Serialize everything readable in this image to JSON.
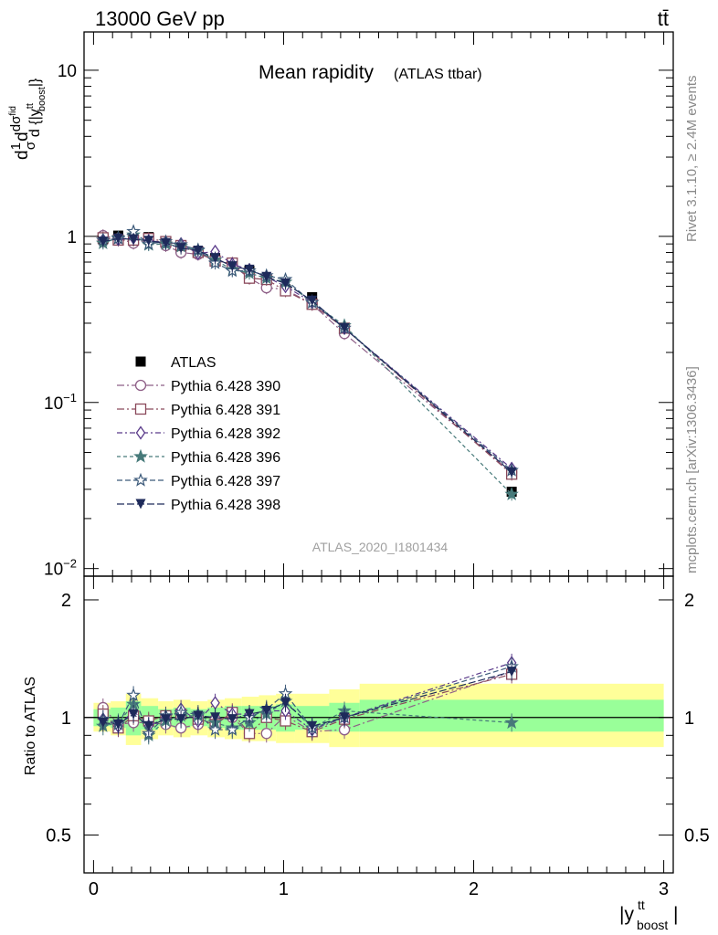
{
  "header": {
    "energy_label": "13000 GeV pp",
    "process_label": "tt̄"
  },
  "side_texts": {
    "rivet": "Rivet 3.1.10, ≥ 2.4M events",
    "mcplots": "mcplots.cern.ch [arXiv:1306.3436]"
  },
  "chart_data": [
    {
      "type": "scatter",
      "panel": "main",
      "title": "Mean rapidity",
      "subtitle": "(ATLAS ttbar)",
      "analysis_label": "ATLAS_2020_I1801434",
      "ylabel": "d 1/σ dσ^fid / d{|y_boost^tt|}",
      "xlabel": "|y_boost^tt|",
      "xlim": [
        -0.05,
        3.05
      ],
      "ylim": [
        0.009,
        17
      ],
      "yscale": "log",
      "y_ticks": [
        {
          "value": 10,
          "label": "10"
        },
        {
          "value": 1,
          "label": "1"
        },
        {
          "value": 0.1,
          "label": "10^-1"
        },
        {
          "value": 0.01,
          "label": "10^-2"
        }
      ],
      "x_ticks": [
        {
          "value": 0,
          "label": "0"
        },
        {
          "value": 1,
          "label": "1"
        },
        {
          "value": 2,
          "label": "2"
        },
        {
          "value": 3,
          "label": "3"
        }
      ],
      "legend_position": "left-middle",
      "x": [
        0.05,
        0.13,
        0.21,
        0.29,
        0.38,
        0.46,
        0.55,
        0.64,
        0.73,
        0.82,
        0.91,
        1.01,
        1.15,
        1.32,
        2.2
      ],
      "series": [
        {
          "name": "ATLAS",
          "marker": "square",
          "color": "#000000",
          "values": [
            0.96,
            1.01,
            0.94,
            0.99,
            0.92,
            0.86,
            0.81,
            0.74,
            0.67,
            0.62,
            0.55,
            0.48,
            0.43,
            0.28,
            0.029
          ]
        },
        {
          "name": "Pythia 6.428 390",
          "marker": "circle",
          "color": "#8e5f87",
          "dash": "8,3,2,3",
          "values": [
            1.01,
            0.97,
            0.91,
            0.96,
            0.88,
            0.8,
            0.78,
            0.73,
            0.67,
            0.56,
            0.49,
            0.48,
            0.39,
            0.26,
            0.038
          ]
        },
        {
          "name": "Pythia 6.428 391",
          "marker": "square-open",
          "color": "#8b4a5c",
          "dash": "8,3,2,3",
          "values": [
            0.98,
            0.95,
            0.95,
            0.97,
            0.93,
            0.88,
            0.8,
            0.71,
            0.69,
            0.56,
            0.55,
            0.47,
            0.39,
            0.28,
            0.037
          ]
        },
        {
          "name": "Pythia 6.428 392",
          "marker": "diamond",
          "color": "#5a3a8a",
          "dash": "6,3,2,3",
          "values": [
            0.95,
            0.96,
            0.98,
            0.94,
            0.92,
            0.9,
            0.79,
            0.81,
            0.68,
            0.63,
            0.57,
            0.5,
            0.4,
            0.28,
            0.04
          ]
        },
        {
          "name": "Pythia 6.428 396",
          "marker": "star-filled",
          "color": "#477a7a",
          "dash": "4,3",
          "values": [
            0.91,
            0.98,
            1.02,
            0.89,
            0.9,
            0.87,
            0.82,
            0.72,
            0.63,
            0.6,
            0.56,
            0.53,
            0.4,
            0.29,
            0.028
          ]
        },
        {
          "name": "Pythia 6.428 397",
          "marker": "star-open",
          "color": "#3c5a7a",
          "dash": "6,3",
          "values": [
            0.95,
            0.97,
            1.07,
            0.9,
            0.93,
            0.89,
            0.83,
            0.69,
            0.62,
            0.62,
            0.58,
            0.55,
            0.4,
            0.28,
            0.039
          ]
        },
        {
          "name": "Pythia 6.428 398",
          "marker": "triangle-down",
          "color": "#1e2a5a",
          "dash": "8,3",
          "values": [
            0.93,
            0.97,
            0.96,
            0.94,
            0.91,
            0.85,
            0.82,
            0.74,
            0.66,
            0.63,
            0.57,
            0.52,
            0.41,
            0.28,
            0.038
          ]
        }
      ]
    },
    {
      "type": "scatter",
      "panel": "ratio",
      "ylabel": "Ratio to ATLAS",
      "xlabel": "|y_boost^tt|",
      "xlim": [
        -0.05,
        3.05
      ],
      "ylim": [
        0.4,
        2.3
      ],
      "yscale": "log",
      "y_ticks": [
        {
          "value": 2,
          "label": "2"
        },
        {
          "value": 1,
          "label": "1"
        },
        {
          "value": 0.5,
          "label": "0.5"
        }
      ],
      "bins": [
        {
          "lo": 0.0,
          "hi": 0.09,
          "inner": [
            0.95,
            1.05
          ],
          "outer": [
            0.92,
            1.09
          ]
        },
        {
          "lo": 0.09,
          "hi": 0.17,
          "inner": [
            0.94,
            1.06
          ],
          "outer": [
            0.9,
            1.1
          ]
        },
        {
          "lo": 0.17,
          "hi": 0.25,
          "inner": [
            0.9,
            1.1
          ],
          "outer": [
            0.85,
            1.15
          ]
        },
        {
          "lo": 0.25,
          "hi": 0.34,
          "inner": [
            0.93,
            1.07
          ],
          "outer": [
            0.88,
            1.12
          ]
        },
        {
          "lo": 0.34,
          "hi": 0.42,
          "inner": [
            0.95,
            1.05
          ],
          "outer": [
            0.9,
            1.1
          ]
        },
        {
          "lo": 0.42,
          "hi": 0.51,
          "inner": [
            0.94,
            1.06
          ],
          "outer": [
            0.89,
            1.11
          ]
        },
        {
          "lo": 0.51,
          "hi": 0.6,
          "inner": [
            0.95,
            1.05
          ],
          "outer": [
            0.9,
            1.1
          ]
        },
        {
          "lo": 0.6,
          "hi": 0.69,
          "inner": [
            0.94,
            1.06
          ],
          "outer": [
            0.89,
            1.11
          ]
        },
        {
          "lo": 0.69,
          "hi": 0.78,
          "inner": [
            0.93,
            1.07
          ],
          "outer": [
            0.88,
            1.12
          ]
        },
        {
          "lo": 0.78,
          "hi": 0.87,
          "inner": [
            0.93,
            1.07
          ],
          "outer": [
            0.87,
            1.13
          ]
        },
        {
          "lo": 0.87,
          "hi": 0.96,
          "inner": [
            0.93,
            1.07
          ],
          "outer": [
            0.87,
            1.14
          ]
        },
        {
          "lo": 0.96,
          "hi": 1.06,
          "inner": [
            0.92,
            1.08
          ],
          "outer": [
            0.86,
            1.15
          ]
        },
        {
          "lo": 1.06,
          "hi": 1.24,
          "inner": [
            0.93,
            1.07
          ],
          "outer": [
            0.86,
            1.15
          ]
        },
        {
          "lo": 1.24,
          "hi": 1.4,
          "inner": [
            0.92,
            1.09
          ],
          "outer": [
            0.84,
            1.18
          ]
        },
        {
          "lo": 1.4,
          "hi": 3.0,
          "inner": [
            0.92,
            1.11
          ],
          "outer": [
            0.84,
            1.22
          ]
        }
      ],
      "reference_line": 1.0,
      "x": [
        0.05,
        0.13,
        0.21,
        0.29,
        0.38,
        0.46,
        0.55,
        0.64,
        0.73,
        0.82,
        0.91,
        1.01,
        1.15,
        1.32,
        2.2
      ],
      "series": [
        {
          "name": "Pythia 6.428 390",
          "values": [
            1.06,
            0.96,
            0.97,
            0.97,
            0.96,
            0.94,
            0.96,
            0.99,
            1.0,
            0.91,
            0.91,
            1.01,
            0.92,
            0.93,
            1.31
          ]
        },
        {
          "name": "Pythia 6.428 391",
          "values": [
            1.02,
            0.94,
            1.01,
            0.98,
            1.01,
            1.02,
            0.99,
            0.96,
            1.03,
            0.91,
            1.0,
            0.98,
            0.92,
            0.99,
            1.29
          ]
        },
        {
          "name": "Pythia 6.428 392",
          "values": [
            0.99,
            0.95,
            1.04,
            0.95,
            1.0,
            1.05,
            0.98,
            1.09,
            1.02,
            1.02,
            1.04,
            1.04,
            0.93,
            1.0,
            1.38
          ]
        },
        {
          "name": "Pythia 6.428 396",
          "values": [
            0.95,
            0.97,
            1.08,
            0.9,
            0.98,
            1.01,
            1.01,
            0.97,
            0.94,
            0.97,
            1.02,
            1.1,
            0.94,
            1.04,
            0.97
          ]
        },
        {
          "name": "Pythia 6.428 397",
          "values": [
            0.99,
            0.96,
            1.14,
            0.91,
            1.01,
            1.03,
            1.02,
            0.93,
            0.93,
            1.0,
            1.05,
            1.15,
            0.94,
            1.0,
            1.35
          ]
        },
        {
          "name": "Pythia 6.428 398",
          "values": [
            0.97,
            0.96,
            1.02,
            0.95,
            0.99,
            0.99,
            1.01,
            1.0,
            0.99,
            1.02,
            1.04,
            1.09,
            0.95,
            1.0,
            1.31
          ]
        }
      ]
    }
  ]
}
